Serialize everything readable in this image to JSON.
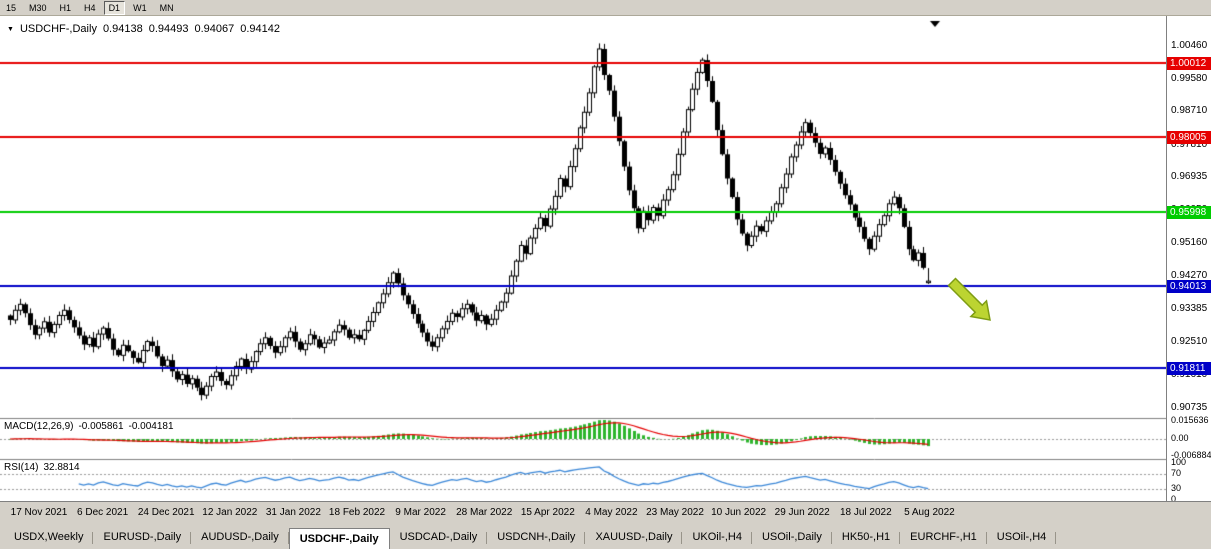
{
  "toolbar": {
    "timeframes": [
      "15",
      "M30",
      "H1",
      "H4",
      "D1",
      "W1",
      "MN"
    ],
    "active": "D1"
  },
  "icons": {
    "title_triangle": "▼"
  },
  "chart": {
    "title": {
      "symbol": "USDCHF-,Daily",
      "open": "0.94138",
      "high": "0.94493",
      "low": "0.94067",
      "close": "0.94142"
    },
    "price_scale_ticks": [
      "1.00460",
      "0.99580",
      "0.98710",
      "0.97810",
      "0.96935",
      "0.96050",
      "0.95160",
      "0.94270",
      "0.93385",
      "0.92510",
      "0.91610",
      "0.90735"
    ],
    "hlines": [
      {
        "price": 1.00012,
        "label": "1.00012",
        "color": "#E60000",
        "width": 2
      },
      {
        "price": 0.98005,
        "label": "0.98005",
        "color": "#E60000",
        "width": 2
      },
      {
        "price": 0.95998,
        "label": "0.95998",
        "color": "#00CC00",
        "width": 2
      },
      {
        "price": 0.94013,
        "label": "0.94013",
        "color": "#0000C8",
        "width": 2
      },
      {
        "price": 0.91811,
        "label": "0.91811",
        "color": "#0000C8",
        "width": 2
      }
    ],
    "annotation_arrow": {
      "direction": "down-right",
      "fill": "#BCD431",
      "stroke": "#7E9C14"
    }
  },
  "indicators": {
    "macd": {
      "label": "MACD(12,26,9)",
      "value_main": "-0.005861",
      "value_signal": "-0.004181",
      "scale_top": "0.015636",
      "scale_zero": "0.00",
      "scale_bottom": "-0.006884",
      "histogram_color": "#2DB52D",
      "signal_color": "#E60000",
      "params": [
        12,
        26,
        9
      ]
    },
    "rsi": {
      "label": "RSI(14)",
      "value": "32.8814",
      "levels": [
        "100",
        "70",
        "30",
        "0"
      ],
      "line_color": "#3A87D8",
      "period": 14
    }
  },
  "time_axis": {
    "labels": [
      "17 Nov 2021",
      "6 Dec 2021",
      "24 Dec 2021",
      "12 Jan 2022",
      "31 Jan 2022",
      "18 Feb 2022",
      "9 Mar 2022",
      "28 Mar 2022",
      "15 Apr 2022",
      "4 May 2022",
      "23 May 2022",
      "10 Jun 2022",
      "29 Jun 2022",
      "18 Jul 2022",
      "5 Aug 2022"
    ]
  },
  "tabs": {
    "active_index": 3,
    "items": [
      "USDX,Weekly",
      "EURUSD-,Daily",
      "AUDUSD-,Daily",
      "USDCHF-,Daily",
      "USDCAD-,Daily",
      "USDCNH-,Daily",
      "XAUUSD-,Daily",
      "UKOil-,H4",
      "USOil-,Daily",
      "HK50-,H1",
      "EURCHF-,H1",
      "USOil-,H4"
    ]
  },
  "chart_data": {
    "type": "candlestick",
    "symbol": "USDCHF",
    "timeframe": "Daily",
    "current_bar": {
      "open": 0.94138,
      "high": 0.94493,
      "low": 0.94067,
      "close": 0.94142
    },
    "view_price_range": [
      0.9047,
      1.0116
    ],
    "horizontal_levels": [
      1.00012,
      0.98005,
      0.95998,
      0.94013,
      0.91811
    ],
    "y_tick_labels": [
      "1.00460",
      "0.99580",
      "0.98710",
      "0.97810",
      "0.96935",
      "0.96050",
      "0.95160",
      "0.94270",
      "0.93385",
      "0.92510",
      "0.91610",
      "0.90735"
    ],
    "x_labels": [
      "17 Nov 2021",
      "6 Dec 2021",
      "24 Dec 2021",
      "12 Jan 2022",
      "31 Jan 2022",
      "18 Feb 2022",
      "9 Mar 2022",
      "28 Mar 2022",
      "15 Apr 2022",
      "4 May 2022",
      "23 May 2022",
      "10 Jun 2022",
      "29 Jun 2022",
      "18 Jul 2022",
      "5 Aug 2022"
    ],
    "closes": [
      0.931,
      0.9336,
      0.9352,
      0.9328,
      0.9296,
      0.927,
      0.9288,
      0.9305,
      0.9276,
      0.9298,
      0.9322,
      0.9336,
      0.931,
      0.929,
      0.9268,
      0.9244,
      0.9262,
      0.9238,
      0.9272,
      0.9288,
      0.926,
      0.923,
      0.9215,
      0.9242,
      0.9226,
      0.9208,
      0.9196,
      0.9228,
      0.9252,
      0.924,
      0.9212,
      0.9186,
      0.9202,
      0.9172,
      0.915,
      0.9163,
      0.9138,
      0.9152,
      0.9128,
      0.9108,
      0.9132,
      0.9158,
      0.917,
      0.9146,
      0.9135,
      0.916,
      0.9185,
      0.9205,
      0.9178,
      0.9198,
      0.9225,
      0.9246,
      0.9262,
      0.924,
      0.9222,
      0.9238,
      0.9262,
      0.9278,
      0.9252,
      0.923,
      0.9246,
      0.927,
      0.9258,
      0.9236,
      0.9248,
      0.9256,
      0.9278,
      0.9296,
      0.9284,
      0.9262,
      0.927,
      0.9258,
      0.9282,
      0.9306,
      0.933,
      0.9356,
      0.938,
      0.941,
      0.9436,
      0.9408,
      0.9376,
      0.9352,
      0.9326,
      0.93,
      0.9276,
      0.9252,
      0.9238,
      0.9262,
      0.9286,
      0.9306,
      0.9328,
      0.9318,
      0.934,
      0.9352,
      0.933,
      0.9308,
      0.9322,
      0.9298,
      0.9312,
      0.9336,
      0.9358,
      0.9382,
      0.9428,
      0.9468,
      0.951,
      0.9488,
      0.953,
      0.9556,
      0.9584,
      0.9562,
      0.9608,
      0.9642,
      0.969,
      0.9668,
      0.9722,
      0.977,
      0.9826,
      0.9868,
      0.992,
      0.999,
      1.0038,
      0.9968,
      0.9926,
      0.9856,
      0.979,
      0.9722,
      0.9658,
      0.961,
      0.9556,
      0.9602,
      0.9578,
      0.9612,
      0.959,
      0.9632,
      0.966,
      0.97,
      0.9755,
      0.9815,
      0.9875,
      0.993,
      0.9975,
      1.0008,
      0.9952,
      0.9896,
      0.982,
      0.9755,
      0.969,
      0.964,
      0.958,
      0.9542,
      0.951,
      0.9535,
      0.9562,
      0.9548,
      0.9576,
      0.96,
      0.9622,
      0.9665,
      0.9702,
      0.9748,
      0.978,
      0.9815,
      0.984,
      0.9812,
      0.9786,
      0.9756,
      0.9772,
      0.974,
      0.9708,
      0.9676,
      0.9645,
      0.962,
      0.9585,
      0.956,
      0.9528,
      0.95,
      0.9535,
      0.9566,
      0.959,
      0.9622,
      0.964,
      0.961,
      0.956,
      0.95,
      0.947,
      0.949,
      0.945,
      0.94142
    ]
  }
}
